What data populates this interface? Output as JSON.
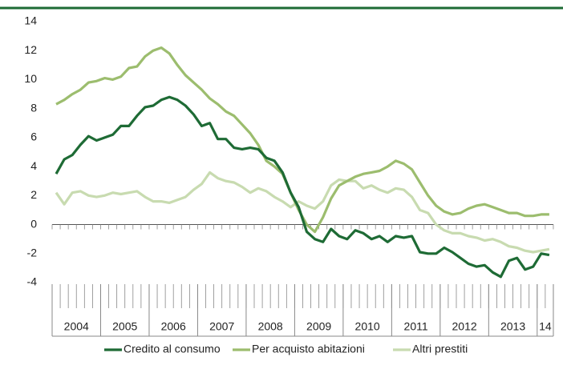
{
  "chart_data": {
    "type": "line",
    "categories": [
      null,
      null,
      null,
      "2004",
      null,
      null,
      null,
      null,
      null,
      "2005",
      null,
      null,
      null,
      null,
      null,
      "2006",
      null,
      null,
      null,
      null,
      null,
      "2007",
      null,
      null,
      null,
      null,
      null,
      "2008",
      null,
      null,
      null,
      null,
      null,
      "2009",
      null,
      null,
      null,
      null,
      null,
      "2010",
      null,
      null,
      null,
      null,
      null,
      "2011",
      null,
      null,
      null,
      null,
      null,
      "2012",
      null,
      null,
      null,
      null,
      null,
      "2013",
      null,
      null,
      null,
      "14"
    ],
    "series": [
      {
        "name": "Credito al consumo",
        "color": "#1e6b35",
        "values": [
          3.5,
          4.5,
          4.8,
          5.5,
          6.1,
          5.8,
          6.0,
          6.2,
          6.8,
          6.8,
          7.5,
          8.1,
          8.2,
          8.6,
          8.8,
          8.6,
          8.2,
          7.6,
          6.8,
          7.0,
          5.9,
          5.9,
          5.3,
          5.2,
          5.3,
          5.2,
          4.6,
          4.4,
          3.6,
          2.2,
          1.2,
          -0.5,
          -1.0,
          -1.2,
          -0.3,
          -0.8,
          -1.0,
          -0.4,
          -0.6,
          -1.0,
          -0.8,
          -1.2,
          -0.8,
          -0.9,
          -0.8,
          -1.9,
          -2.0,
          -2.0,
          -1.6,
          -1.9,
          -2.3,
          -2.7,
          -2.9,
          -2.8,
          -3.3,
          -3.6,
          -2.5,
          -2.3,
          -3.1,
          -2.9,
          -2.0,
          -2.1
        ]
      },
      {
        "name": "Per acquisto abitazioni",
        "color": "#9cbd6e",
        "values": [
          8.3,
          8.6,
          9.0,
          9.3,
          9.8,
          9.9,
          10.1,
          10.0,
          10.2,
          10.8,
          10.9,
          11.6,
          12.0,
          12.2,
          11.8,
          11.0,
          10.3,
          9.8,
          9.3,
          8.7,
          8.3,
          7.8,
          7.5,
          6.9,
          6.3,
          5.5,
          4.4,
          4.0,
          3.5,
          2.2,
          1.0,
          0.0,
          -0.5,
          0.5,
          1.8,
          2.7,
          3.0,
          3.3,
          3.5,
          3.6,
          3.7,
          4.0,
          4.4,
          4.2,
          3.8,
          2.9,
          2.0,
          1.3,
          0.9,
          0.7,
          0.8,
          1.1,
          1.3,
          1.4,
          1.2,
          1.0,
          0.8,
          0.8,
          0.6,
          0.6,
          0.7,
          0.7
        ]
      },
      {
        "name": "Altri prestiti",
        "color": "#c8dbb0",
        "values": [
          2.2,
          1.4,
          2.2,
          2.3,
          2.0,
          1.9,
          2.0,
          2.2,
          2.1,
          2.2,
          2.3,
          1.9,
          1.6,
          1.6,
          1.5,
          1.7,
          1.9,
          2.4,
          2.8,
          3.6,
          3.2,
          3.0,
          2.9,
          2.6,
          2.2,
          2.5,
          2.3,
          1.9,
          1.6,
          1.2,
          1.6,
          1.3,
          1.1,
          1.6,
          2.7,
          3.1,
          3.0,
          3.0,
          2.5,
          2.7,
          2.4,
          2.2,
          2.5,
          2.4,
          1.9,
          1.0,
          0.8,
          0.0,
          -0.4,
          -0.6,
          -0.6,
          -0.8,
          -0.9,
          -1.1,
          -1.0,
          -1.2,
          -1.5,
          -1.6,
          -1.8,
          -1.9,
          -1.8,
          -1.7
        ]
      }
    ],
    "ylim": [
      -4,
      14
    ],
    "yticks": [
      -4,
      -2,
      0,
      2,
      4,
      6,
      8,
      10,
      12,
      14
    ],
    "legend": "bottom"
  }
}
